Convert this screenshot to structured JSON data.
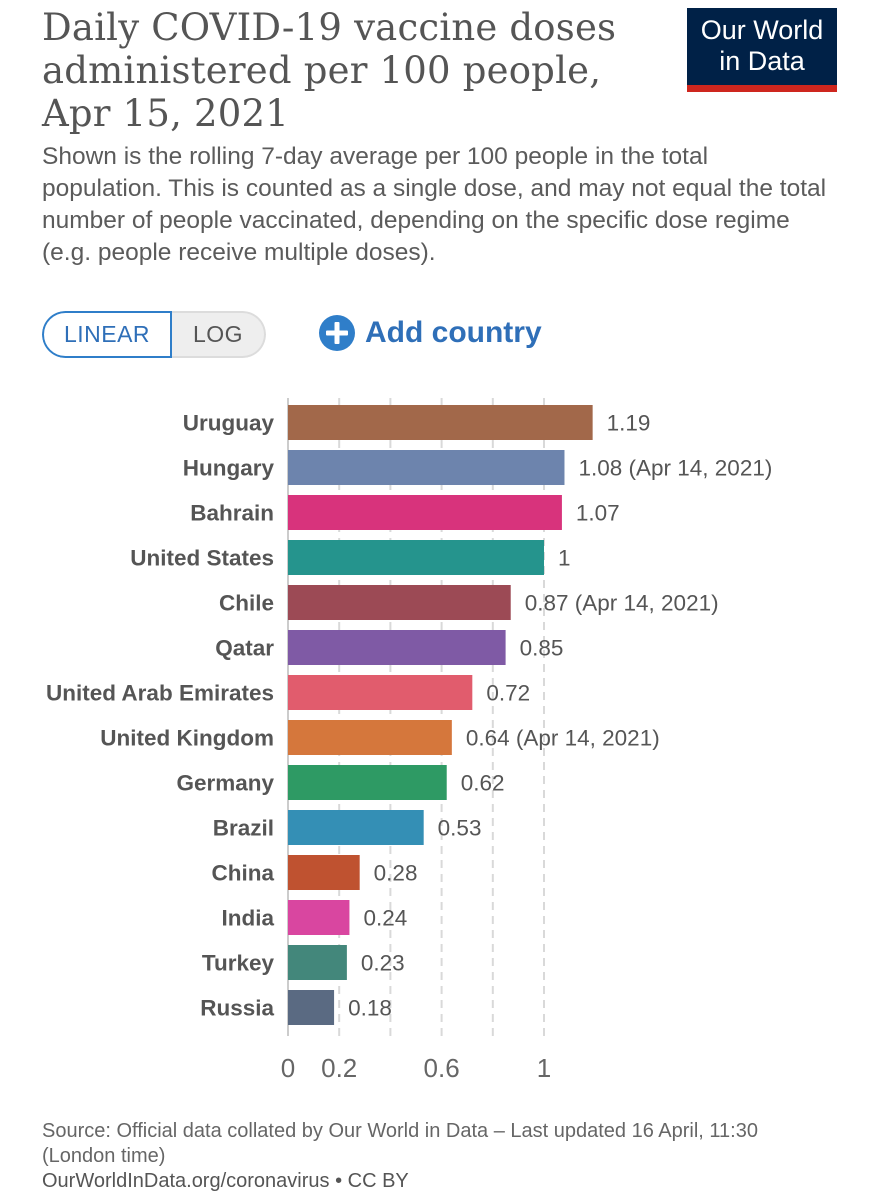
{
  "header": {
    "title": "Daily COVID-19 vaccine doses administered per 100 people, Apr 15, 2021",
    "subtitle": "Shown is the rolling 7-day average per 100 people in the total population. This is counted as a single dose, and may not equal the total number of people vaccinated, depending on the specific dose regime (e.g. people receive multiple doses).",
    "logo_line1": "Our World",
    "logo_line2": "in Data"
  },
  "controls": {
    "linear_label": "LINEAR",
    "log_label": "LOG",
    "add_country_label": "Add country"
  },
  "chart_data": {
    "type": "bar",
    "orientation": "horizontal",
    "title": "Daily COVID-19 vaccine doses administered per 100 people, Apr 15, 2021",
    "xlim": [
      0,
      1.19
    ],
    "x_ticks": [
      0,
      0.2,
      0.6,
      1
    ],
    "x_tick_labels": [
      "0",
      "0.2",
      "0.6",
      "1"
    ],
    "gridlines_at": [
      0.2,
      0.4,
      0.6,
      0.8,
      1
    ],
    "grid": true,
    "categories": [
      "Uruguay",
      "Hungary",
      "Bahrain",
      "United States",
      "Chile",
      "Qatar",
      "United Arab Emirates",
      "United Kingdom",
      "Germany",
      "Brazil",
      "China",
      "India",
      "Turkey",
      "Russia"
    ],
    "values": [
      1.19,
      1.08,
      1.07,
      1,
      0.87,
      0.85,
      0.72,
      0.64,
      0.62,
      0.53,
      0.28,
      0.24,
      0.23,
      0.18
    ],
    "value_labels": [
      "1.19",
      "1.08 (Apr 14, 2021)",
      "1.07",
      "1",
      "0.87 (Apr 14, 2021)",
      "0.85",
      "0.72",
      "0.64 (Apr 14, 2021)",
      "0.62",
      "0.53",
      "0.28",
      "0.24",
      "0.23",
      "0.18"
    ],
    "colors": [
      "#a2684a",
      "#6d84ad",
      "#d8337c",
      "#25948d",
      "#9c4a55",
      "#7f5aa5",
      "#e15c6d",
      "#d5773c",
      "#2e9a64",
      "#348fb5",
      "#bf5230",
      "#d946a0",
      "#43877b",
      "#5a6a82"
    ]
  },
  "footer": {
    "source": "Source: Official data collated by Our World in Data – Last updated 16 April, 11:30 (London time)",
    "link": "OurWorldInData.org/coronavirus • CC BY"
  }
}
